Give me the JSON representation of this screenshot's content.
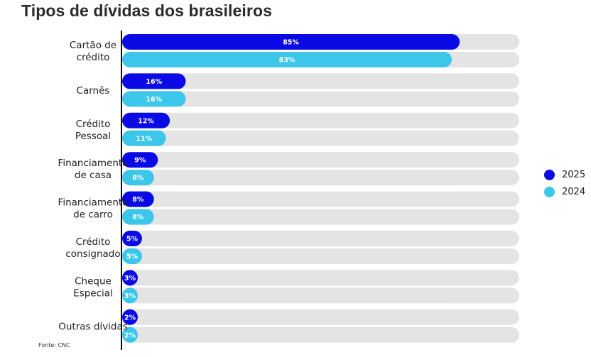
{
  "title": "Tipos de dívidas dos brasileiros",
  "source": "Fonte: CNC",
  "legend": {
    "items": [
      {
        "label": "2025",
        "color": "#0a0ae6"
      },
      {
        "label": "2024",
        "color": "#3cc7ea"
      }
    ]
  },
  "chart_data": {
    "type": "bar",
    "orientation": "horizontal",
    "categories": [
      [
        "Cartão de",
        "crédito"
      ],
      [
        "Carnês"
      ],
      [
        "Crédito",
        "Pessoal"
      ],
      [
        "Financiamento",
        "de casa"
      ],
      [
        "Financiamento",
        "de carro"
      ],
      [
        "Crédito",
        "consignado"
      ],
      [
        "Cheque",
        "Especial"
      ],
      [
        "Outras dívidas"
      ]
    ],
    "series": [
      {
        "name": "2025",
        "color": "#0a0ae6",
        "values": [
          85,
          16,
          12,
          9,
          8,
          5,
          3,
          2
        ],
        "labels": [
          "85%",
          "16%",
          "12%",
          "9%",
          "8%",
          "5%",
          "3%",
          "2%"
        ]
      },
      {
        "name": "2024",
        "color": "#3cc7ea",
        "values": [
          83,
          16,
          11,
          8,
          8,
          5,
          3,
          2
        ],
        "labels": [
          "83%",
          "16%",
          "11%",
          "8%",
          "8%",
          "5%",
          "3%",
          "2%"
        ]
      }
    ],
    "xlim": [
      0,
      100
    ],
    "track_color": "#e4e4e4",
    "legend_position": "right",
    "grid": false
  }
}
